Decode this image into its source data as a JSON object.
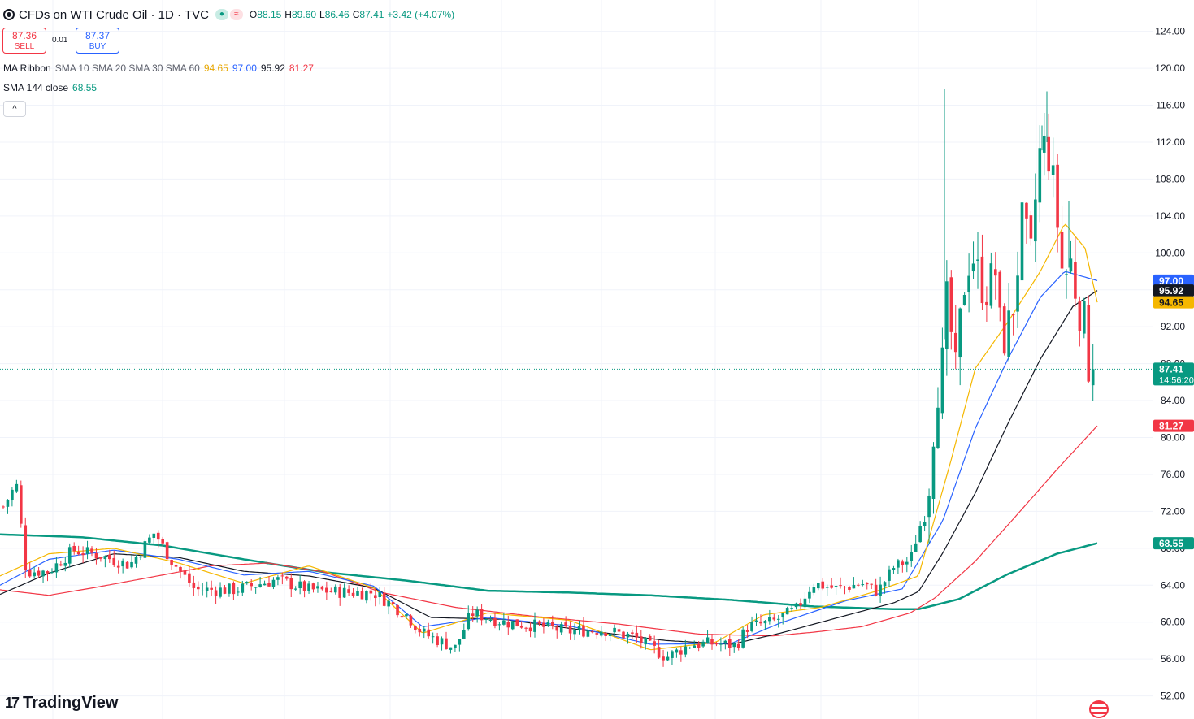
{
  "header": {
    "title": "CFDs on WTI Crude Oil · 1D · TVC",
    "ohlc": [
      {
        "k": "O",
        "v": "88.15"
      },
      {
        "k": "H",
        "v": "89.60"
      },
      {
        "k": "L",
        "v": "86.46"
      },
      {
        "k": "C",
        "v": "87.41"
      }
    ],
    "change": "+3.42 (+4.07%)"
  },
  "trade": {
    "sell_price": "87.36",
    "sell_label": "SELL",
    "spread": "0.01",
    "buy_price": "87.37",
    "buy_label": "BUY"
  },
  "indicators": {
    "ribbon_name": "MA Ribbon",
    "ribbon_params": "SMA 10 SMA 20 SMA 30 SMA 60",
    "ribbon_values": [
      {
        "v": "94.65",
        "color": "#e8a700"
      },
      {
        "v": "97.00",
        "color": "#2962ff"
      },
      {
        "v": "95.92",
        "color": "#131722"
      },
      {
        "v": "81.27",
        "color": "#f23645"
      }
    ],
    "sma_name": "SMA 144 close",
    "sma_value": "68.55",
    "sma_color": "#089981",
    "collapse_icon": "^"
  },
  "brand": {
    "logo": "17",
    "name": "TradingView"
  },
  "colors": {
    "up": "#089981",
    "down": "#f23645",
    "grid": "#f0f3fa",
    "sma10": "#f5b700",
    "sma20": "#2962ff",
    "sma30": "#131722",
    "sma60": "#f23645",
    "sma144": "#089981"
  },
  "chart_data": {
    "type": "candlestick",
    "y_ticks": [
      "124.00",
      "120.00",
      "116.00",
      "112.00",
      "108.00",
      "104.00",
      "100.00",
      "96.00",
      "92.00",
      "88.00",
      "84.00",
      "80.00",
      "76.00",
      "72.00",
      "68.00",
      "64.00",
      "60.00",
      "56.00",
      "52.00"
    ],
    "ylim": [
      49.5,
      127.4
    ],
    "price_labels": [
      {
        "text": "97.00",
        "value": 97.0,
        "bg": "#2962ff",
        "fg": "#ffffff"
      },
      {
        "text": "95.92",
        "value": 95.92,
        "bg": "#131722",
        "fg": "#ffffff"
      },
      {
        "text": "94.65",
        "value": 94.65,
        "bg": "#f5b700",
        "fg": "#131722"
      },
      {
        "text": "87.41",
        "sub": "14:56:20",
        "value": 87.41,
        "bg": "#089981",
        "fg": "#ffffff"
      },
      {
        "text": "81.27",
        "value": 81.27,
        "bg": "#f23645",
        "fg": "#ffffff"
      },
      {
        "text": "68.55",
        "value": 68.55,
        "bg": "#089981",
        "fg": "#ffffff"
      }
    ],
    "last_price": 87.41,
    "series": {
      "sma144_anchors": [
        [
          0,
          69.5
        ],
        [
          100,
          69.2
        ],
        [
          200,
          68.3
        ],
        [
          300,
          66.8
        ],
        [
          400,
          65.4
        ],
        [
          500,
          64.5
        ],
        [
          600,
          63.4
        ],
        [
          700,
          63.2
        ],
        [
          800,
          62.9
        ],
        [
          900,
          62.4
        ],
        [
          1000,
          61.7
        ],
        [
          1100,
          61.4
        ],
        [
          1130,
          61.4
        ],
        [
          1180,
          62.5
        ],
        [
          1240,
          65.2
        ],
        [
          1300,
          67.4
        ],
        [
          1350,
          68.55
        ]
      ],
      "sma60_anchors": [
        [
          0,
          63.5
        ],
        [
          60,
          62.9
        ],
        [
          120,
          63.8
        ],
        [
          200,
          65.1
        ],
        [
          260,
          66.1
        ],
        [
          330,
          66.4
        ],
        [
          400,
          65.4
        ],
        [
          470,
          63.2
        ],
        [
          560,
          61.6
        ],
        [
          660,
          60.6
        ],
        [
          760,
          59.8
        ],
        [
          860,
          58.7
        ],
        [
          950,
          58.5
        ],
        [
          1000,
          58.9
        ],
        [
          1060,
          59.5
        ],
        [
          1120,
          61.0
        ],
        [
          1150,
          62.6
        ],
        [
          1200,
          66.6
        ],
        [
          1250,
          71.5
        ],
        [
          1300,
          76.5
        ],
        [
          1350,
          81.27
        ]
      ],
      "sma30_anchors": [
        [
          0,
          63.0
        ],
        [
          60,
          65.3
        ],
        [
          140,
          67.4
        ],
        [
          220,
          67.0
        ],
        [
          300,
          65.5
        ],
        [
          380,
          65.0
        ],
        [
          460,
          63.7
        ],
        [
          530,
          60.5
        ],
        [
          620,
          60.3
        ],
        [
          720,
          59.1
        ],
        [
          820,
          58.0
        ],
        [
          900,
          57.6
        ],
        [
          960,
          58.8
        ],
        [
          1040,
          60.7
        ],
        [
          1100,
          62.1
        ],
        [
          1130,
          63.3
        ],
        [
          1160,
          67.5
        ],
        [
          1200,
          74.0
        ],
        [
          1240,
          81.5
        ],
        [
          1280,
          88.5
        ],
        [
          1320,
          94.2
        ],
        [
          1350,
          95.92
        ]
      ],
      "sma20_anchors": [
        [
          0,
          64.0
        ],
        [
          60,
          66.8
        ],
        [
          140,
          67.8
        ],
        [
          220,
          66.8
        ],
        [
          300,
          65.1
        ],
        [
          380,
          65.5
        ],
        [
          460,
          63.9
        ],
        [
          520,
          59.5
        ],
        [
          600,
          60.5
        ],
        [
          700,
          59.6
        ],
        [
          800,
          57.6
        ],
        [
          900,
          57.7
        ],
        [
          960,
          59.9
        ],
        [
          1040,
          62.3
        ],
        [
          1110,
          63.6
        ],
        [
          1160,
          71.0
        ],
        [
          1200,
          81.0
        ],
        [
          1240,
          88.5
        ],
        [
          1280,
          95.2
        ],
        [
          1310,
          98.0
        ],
        [
          1350,
          97.0
        ]
      ],
      "sma10_anchors": [
        [
          0,
          65.0
        ],
        [
          60,
          67.4
        ],
        [
          140,
          68.0
        ],
        [
          220,
          66.4
        ],
        [
          300,
          64.2
        ],
        [
          380,
          66.1
        ],
        [
          460,
          63.7
        ],
        [
          520,
          58.8
        ],
        [
          600,
          61.0
        ],
        [
          700,
          60.2
        ],
        [
          800,
          57.0
        ],
        [
          880,
          57.8
        ],
        [
          940,
          60.8
        ],
        [
          1010,
          61.6
        ],
        [
          1080,
          63.4
        ],
        [
          1130,
          65.0
        ],
        [
          1170,
          77.5
        ],
        [
          1200,
          87.5
        ],
        [
          1240,
          92.5
        ],
        [
          1280,
          98.0
        ],
        [
          1310,
          103.2
        ],
        [
          1335,
          100.5
        ],
        [
          1350,
          94.65
        ]
      ],
      "price_anchors": [
        [
          4,
          72.5
        ],
        [
          20,
          75.0
        ],
        [
          32,
          65.5
        ],
        [
          60,
          65.5
        ],
        [
          90,
          67.8
        ],
        [
          120,
          67.3
        ],
        [
          160,
          66.2
        ],
        [
          190,
          69.7
        ],
        [
          210,
          66.8
        ],
        [
          240,
          63.5
        ],
        [
          290,
          63.5
        ],
        [
          340,
          64.6
        ],
        [
          380,
          63.5
        ],
        [
          430,
          63.2
        ],
        [
          460,
          63.2
        ],
        [
          500,
          60.8
        ],
        [
          520,
          58.8
        ],
        [
          560,
          57.2
        ],
        [
          580,
          61.0
        ],
        [
          620,
          60.0
        ],
        [
          660,
          59.6
        ],
        [
          700,
          59.0
        ],
        [
          740,
          59.2
        ],
        [
          780,
          58.4
        ],
        [
          820,
          56.2
        ],
        [
          850,
          57.6
        ],
        [
          880,
          57.7
        ],
        [
          905,
          57.4
        ],
        [
          920,
          59.5
        ],
        [
          950,
          60.0
        ],
        [
          980,
          61.4
        ],
        [
          1000,
          64.2
        ],
        [
          1030,
          63.6
        ],
        [
          1060,
          64.2
        ],
        [
          1080,
          63.3
        ],
        [
          1100,
          66.0
        ],
        [
          1120,
          66.7
        ],
        [
          1130,
          70.0
        ],
        [
          1140,
          72.0
        ],
        [
          1152,
          85.0
        ],
        [
          1160,
          88.0
        ],
        [
          1166,
          96.0
        ],
        [
          1175,
          86.0
        ],
        [
          1185,
          96.0
        ],
        [
          1195,
          100.5
        ],
        [
          1205,
          97.0
        ],
        [
          1215,
          96.0
        ],
        [
          1225,
          98.0
        ],
        [
          1232,
          90.0
        ],
        [
          1245,
          93.0
        ],
        [
          1258,
          103.5
        ],
        [
          1268,
          99.0
        ],
        [
          1278,
          110.5
        ],
        [
          1288,
          112.0
        ],
        [
          1298,
          106.0
        ],
        [
          1308,
          97.0
        ],
        [
          1318,
          99.0
        ],
        [
          1325,
          95.0
        ],
        [
          1335,
          92.0
        ],
        [
          1343,
          84.5
        ],
        [
          1350,
          87.41
        ]
      ],
      "spikes": [
        [
          1162,
          117.8
        ],
        [
          1288,
          117.5
        ],
        [
          1282,
          113.8
        ],
        [
          1315,
          105.6
        ]
      ]
    }
  }
}
